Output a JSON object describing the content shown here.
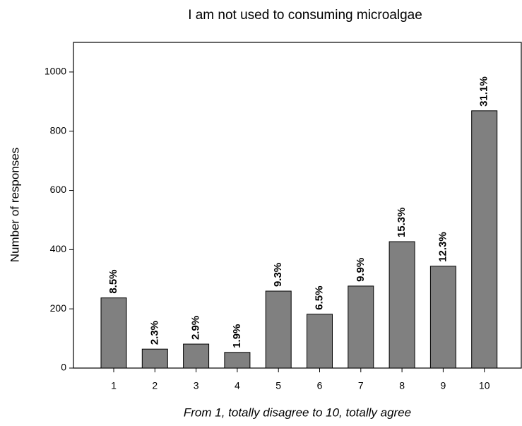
{
  "chart_data": {
    "type": "bar",
    "title": "I am not used to consuming microalgae",
    "y_label": "Number of responses",
    "x_label": "From 1, totally disagree to 10, totally agree",
    "categories": [
      "1",
      "2",
      "3",
      "4",
      "5",
      "6",
      "7",
      "8",
      "9",
      "10"
    ],
    "values": [
      237,
      64,
      81,
      53,
      260,
      182,
      277,
      427,
      344,
      869
    ],
    "value_labels": [
      "8.5%",
      "2.3%",
      "2.9%",
      "1.9%",
      "9.3%",
      "6.5%",
      "9.9%",
      "15.3%",
      "12.3%",
      "31.1%"
    ],
    "color": "#808080",
    "ylim": [
      0,
      1100
    ],
    "yticks": [
      0,
      200,
      400,
      600,
      800,
      1000
    ],
    "grid": false
  }
}
